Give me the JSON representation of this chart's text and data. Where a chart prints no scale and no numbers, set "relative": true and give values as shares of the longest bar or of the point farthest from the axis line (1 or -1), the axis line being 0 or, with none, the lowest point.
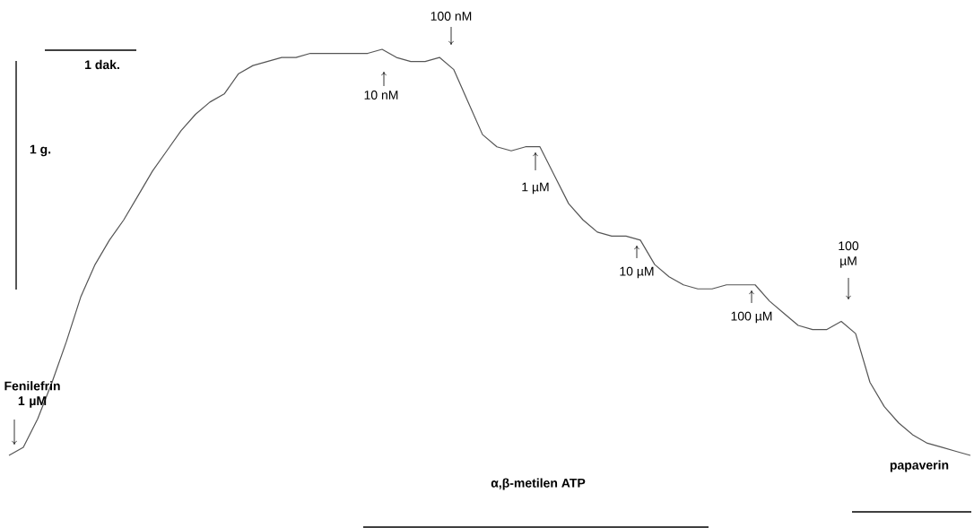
{
  "chart_data": {
    "type": "line",
    "relative": true,
    "color": "#555555",
    "categories": [
      null,
      null,
      null,
      null,
      null,
      null,
      null,
      null,
      null,
      null,
      null,
      null,
      null,
      null,
      null,
      null,
      null,
      null,
      null,
      null,
      null,
      null,
      null,
      null,
      null,
      null,
      null,
      null,
      null,
      null,
      null,
      null,
      null,
      null,
      null,
      null,
      null,
      null,
      null,
      null,
      null,
      null,
      null,
      null,
      null,
      null,
      null,
      null,
      null,
      null,
      null,
      null,
      null,
      null,
      null,
      null,
      null,
      null,
      null,
      null,
      null,
      null,
      null,
      null,
      null,
      null,
      null,
      null
    ],
    "values": [
      0,
      0.02,
      0.09,
      0.18,
      0.28,
      0.39,
      0.47,
      0.53,
      0.58,
      0.64,
      0.7,
      0.75,
      0.8,
      0.84,
      0.87,
      0.89,
      0.94,
      0.96,
      0.97,
      0.98,
      0.98,
      0.99,
      0.99,
      0.99,
      0.99,
      0.99,
      1.0,
      0.98,
      0.97,
      0.97,
      0.98,
      0.95,
      0.87,
      0.79,
      0.76,
      0.75,
      0.76,
      0.76,
      0.69,
      0.62,
      0.58,
      0.55,
      0.54,
      0.54,
      0.53,
      0.47,
      0.44,
      0.42,
      0.41,
      0.41,
      0.42,
      0.42,
      0.42,
      0.38,
      0.35,
      0.32,
      0.31,
      0.31,
      0.33,
      0.3,
      0.18,
      0.12,
      0.08,
      0.05,
      0.03,
      0.02,
      0.01,
      0
    ],
    "annotations": [
      "Fenilefrin 1 µM",
      "10 nM",
      "100 nM",
      "1 µM",
      "10 µM",
      "100 µM",
      "100 µM",
      "1 dak.",
      "1 g.",
      "α,β-metilen ATP",
      "papaverin"
    ]
  }
}
